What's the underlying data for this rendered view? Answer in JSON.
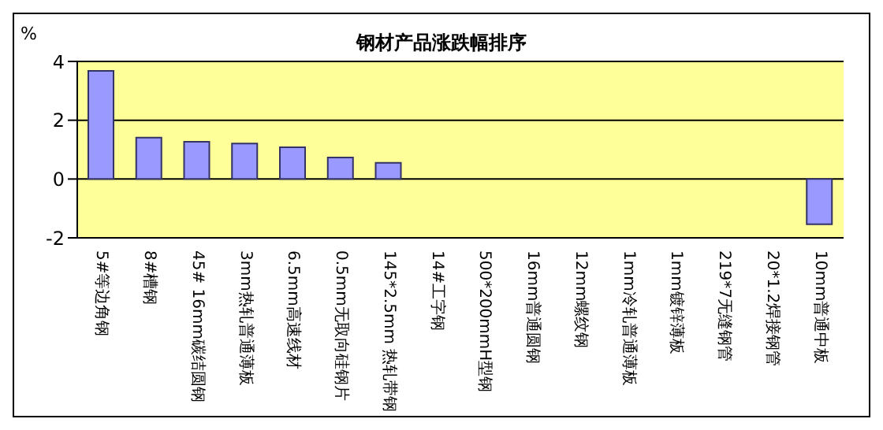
{
  "chart_data": {
    "type": "bar",
    "title": "钢材产品涨跌幅排序",
    "ylabel": "%",
    "categories": [
      "5#等边角钢",
      "8#槽钢",
      "45# 16mm碳结圆钢",
      "3mm热轧普通薄板",
      "6.5mm高速线材",
      "0.5mm无取向硅钢片",
      "145*2.5mm 热轧带钢",
      "14#工字钢",
      "500*200mmH型钢",
      "16mm普通圆钢",
      "12mm螺纹钢",
      "1mm冷轧普通薄板",
      "1mm镀锌薄板",
      "219*7无缝钢管",
      "20*1.2焊接钢管",
      "10mm普通中板"
    ],
    "values": [
      3.68,
      1.41,
      1.27,
      1.21,
      1.08,
      0.73,
      0.55,
      0,
      0,
      0,
      0,
      0,
      0,
      0,
      0,
      -1.54
    ],
    "color": "#9999ff",
    "ylim": [
      -2,
      4
    ],
    "yticks": [
      -2,
      0,
      2,
      4
    ],
    "grid": "y"
  }
}
